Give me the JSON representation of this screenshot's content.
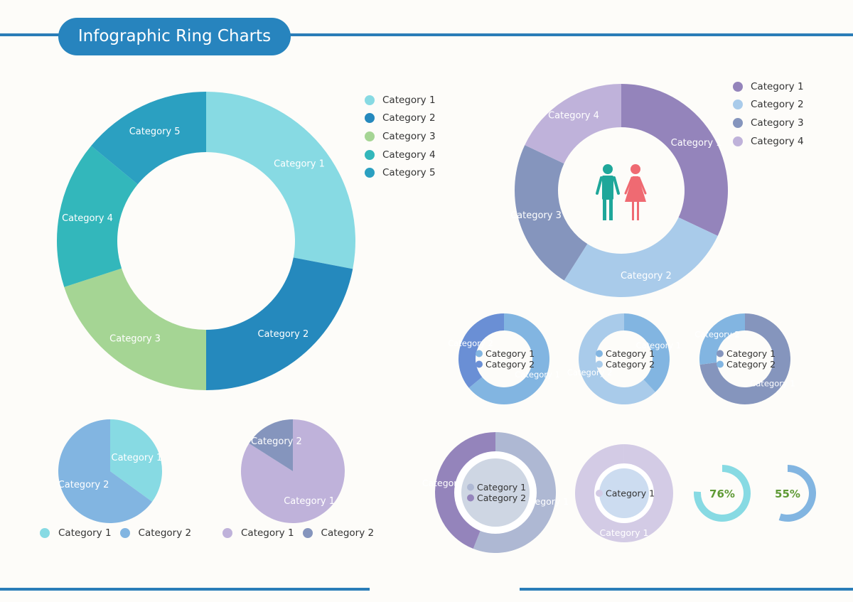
{
  "header": {
    "title": "Infographic Ring Charts"
  },
  "icons": [
    "man-icon",
    "woman-icon"
  ],
  "colors": {
    "rule": "#2a7db8",
    "title_pill": "#2784be",
    "man": "#1fa79a",
    "woman": "#ef6a72",
    "percent_text": "#5f9a36"
  },
  "chart_data": [
    {
      "type": "donut",
      "id": "big-donut",
      "categories": [
        "Category 1",
        "Category 2",
        "Category 3",
        "Category 4",
        "Category 5"
      ],
      "values": [
        28,
        22,
        20,
        16,
        14
      ],
      "colors": [
        "#87dae3",
        "#2589bd",
        "#a5d594",
        "#33b7bb",
        "#2ba0c1"
      ],
      "legend": {
        "position": "right",
        "entries": [
          "Category 1",
          "Category 2",
          "Category 3",
          "Category 4",
          "Category 5"
        ]
      }
    },
    {
      "type": "donut",
      "id": "people-donut",
      "categories": [
        "Category 1",
        "Category 2",
        "Category 3",
        "Category 4"
      ],
      "values": [
        32,
        27,
        23,
        18
      ],
      "colors": [
        "#9484bb",
        "#a9cbea",
        "#8595bd",
        "#bfb2da"
      ],
      "legend": {
        "position": "top-right",
        "entries": [
          "Category 1",
          "Category 2",
          "Category 3",
          "Category 4"
        ]
      }
    },
    {
      "type": "donut",
      "id": "small-donut-1",
      "categories": [
        "Category 1",
        "Category 2"
      ],
      "values": [
        64,
        36
      ],
      "colors": [
        "#82b5e1",
        "#6a8fd5"
      ],
      "legend": {
        "position": "center",
        "entries": [
          "Category 1",
          "Category 2"
        ]
      }
    },
    {
      "type": "donut",
      "id": "small-donut-2",
      "categories": [
        "Category 1",
        "Category 2"
      ],
      "values": [
        38,
        62
      ],
      "colors": [
        "#82b5e1",
        "#a9cbea"
      ],
      "legend": {
        "position": "center",
        "entries": [
          "Category 1",
          "Category 2"
        ]
      }
    },
    {
      "type": "donut",
      "id": "small-donut-3",
      "categories": [
        "Category 1",
        "Category 2"
      ],
      "values": [
        73,
        27
      ],
      "colors": [
        "#8595bd",
        "#82b5e1"
      ],
      "legend": {
        "position": "center",
        "entries": [
          "Category 1",
          "Category 2"
        ]
      }
    },
    {
      "type": "pie",
      "id": "pie-1",
      "categories": [
        "Category 1",
        "Category 2"
      ],
      "values": [
        35,
        65
      ],
      "colors": [
        "#87dae3",
        "#82b5e1"
      ],
      "legend": {
        "position": "bottom",
        "entries": [
          "Category 1",
          "Category 2"
        ]
      }
    },
    {
      "type": "pie",
      "id": "pie-2",
      "categories": [
        "Category 1",
        "Category 2"
      ],
      "values": [
        84,
        16
      ],
      "colors": [
        "#bfb2da",
        "#8595bd"
      ],
      "legend": {
        "position": "bottom",
        "entries": [
          "Category 1",
          "Category 2"
        ]
      }
    },
    {
      "type": "donut",
      "id": "nested-donut",
      "categories": [
        "Category 1",
        "Category 2"
      ],
      "values": [
        56,
        44
      ],
      "colors": [
        "#aeb8d3",
        "#9484bb"
      ],
      "inner_fill": "#ced6e3",
      "legend": {
        "position": "center",
        "entries": [
          "Category 1",
          "Category 2"
        ]
      }
    },
    {
      "type": "donut",
      "id": "single-donut",
      "categories": [
        "Category 1"
      ],
      "values": [
        100
      ],
      "colors": [
        "#d3cbe5"
      ],
      "inner_fill": "#ccdcf0",
      "legend": {
        "position": "center",
        "entries": [
          "Category 1"
        ]
      }
    },
    {
      "type": "progress-ring",
      "id": "progress-1",
      "percent": 76,
      "label": "76%",
      "color": "#87dae3"
    },
    {
      "type": "progress-ring",
      "id": "progress-2",
      "percent": 55,
      "label": "55%",
      "color": "#82b5e1"
    }
  ]
}
